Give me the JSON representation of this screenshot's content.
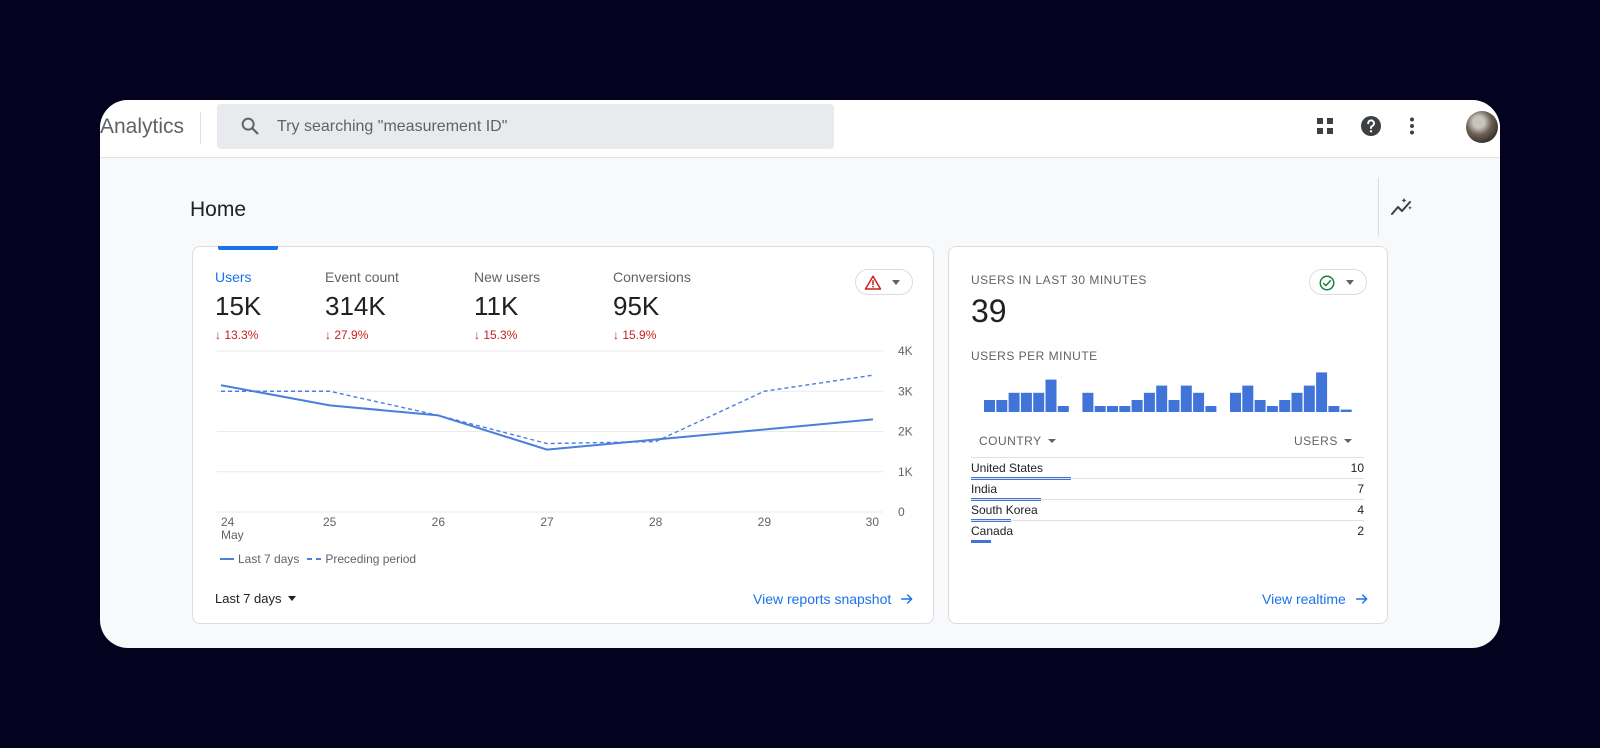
{
  "app": {
    "title": "Analytics"
  },
  "search": {
    "placeholder": "Try searching \"measurement ID\""
  },
  "topbar_icons": [
    "apps-grid-icon",
    "help-icon",
    "more-vert-icon",
    "avatar"
  ],
  "page": {
    "title": "Home"
  },
  "colors": {
    "accent": "#1a73e8",
    "line": "#4a7fdb",
    "bar": "#4174d9",
    "negative": "#c5221f",
    "ok": "#188038",
    "warn": "#e37400"
  },
  "metrics": [
    {
      "label": "Users",
      "value": "15K",
      "change": "↓ 13.3%",
      "active": true
    },
    {
      "label": "Event count",
      "value": "314K",
      "change": "↓ 27.9%",
      "active": false
    },
    {
      "label": "New users",
      "value": "11K",
      "change": "↓ 15.3%",
      "active": false
    },
    {
      "label": "Conversions",
      "value": "95K",
      "change": "↓ 15.9%",
      "active": false
    }
  ],
  "status_main": {
    "icon": "warning-icon"
  },
  "chart_data": {
    "type": "line",
    "categories": [
      "24\nMay",
      "25",
      "26",
      "27",
      "28",
      "29",
      "30"
    ],
    "yticks": [
      "4K",
      "3K",
      "2K",
      "1K",
      "0"
    ],
    "ylim": [
      0,
      4000
    ],
    "series": [
      {
        "name": "Last 7 days",
        "style": "solid",
        "values": [
          3150,
          2650,
          2400,
          1550,
          1800,
          2050,
          2300
        ]
      },
      {
        "name": "Preceding period",
        "style": "dashed",
        "values": [
          3000,
          3000,
          2400,
          1700,
          1750,
          3000,
          3400
        ]
      }
    ],
    "grid": true,
    "legend_position": "bottom-left"
  },
  "legend": {
    "series1": "Last 7 days",
    "series2": "Preceding period"
  },
  "footer_main": {
    "range": "Last 7 days",
    "link": "View reports snapshot"
  },
  "realtime": {
    "title": "USERS IN LAST 30 MINUTES",
    "value": "39",
    "sub_title": "USERS PER MINUTE",
    "status_icon": "check-circle-icon",
    "per_minute": [
      1,
      1,
      1.6,
      1.6,
      1.6,
      2.7,
      0.5,
      0,
      1.6,
      0.5,
      0.5,
      0.5,
      1,
      1.6,
      2.2,
      1,
      2.2,
      1.6,
      0.5,
      0,
      1.6,
      2.2,
      1,
      0.5,
      1,
      1.6,
      2.2,
      3.3,
      0.5,
      0.2
    ],
    "columns": {
      "country": "COUNTRY",
      "users": "USERS"
    },
    "rows": [
      {
        "country": "United States",
        "users": "10",
        "share": 1.0
      },
      {
        "country": "India",
        "users": "7",
        "share": 0.7
      },
      {
        "country": "South Korea",
        "users": "4",
        "share": 0.4
      },
      {
        "country": "Canada",
        "users": "2",
        "share": 0.2
      }
    ],
    "link": "View realtime"
  }
}
